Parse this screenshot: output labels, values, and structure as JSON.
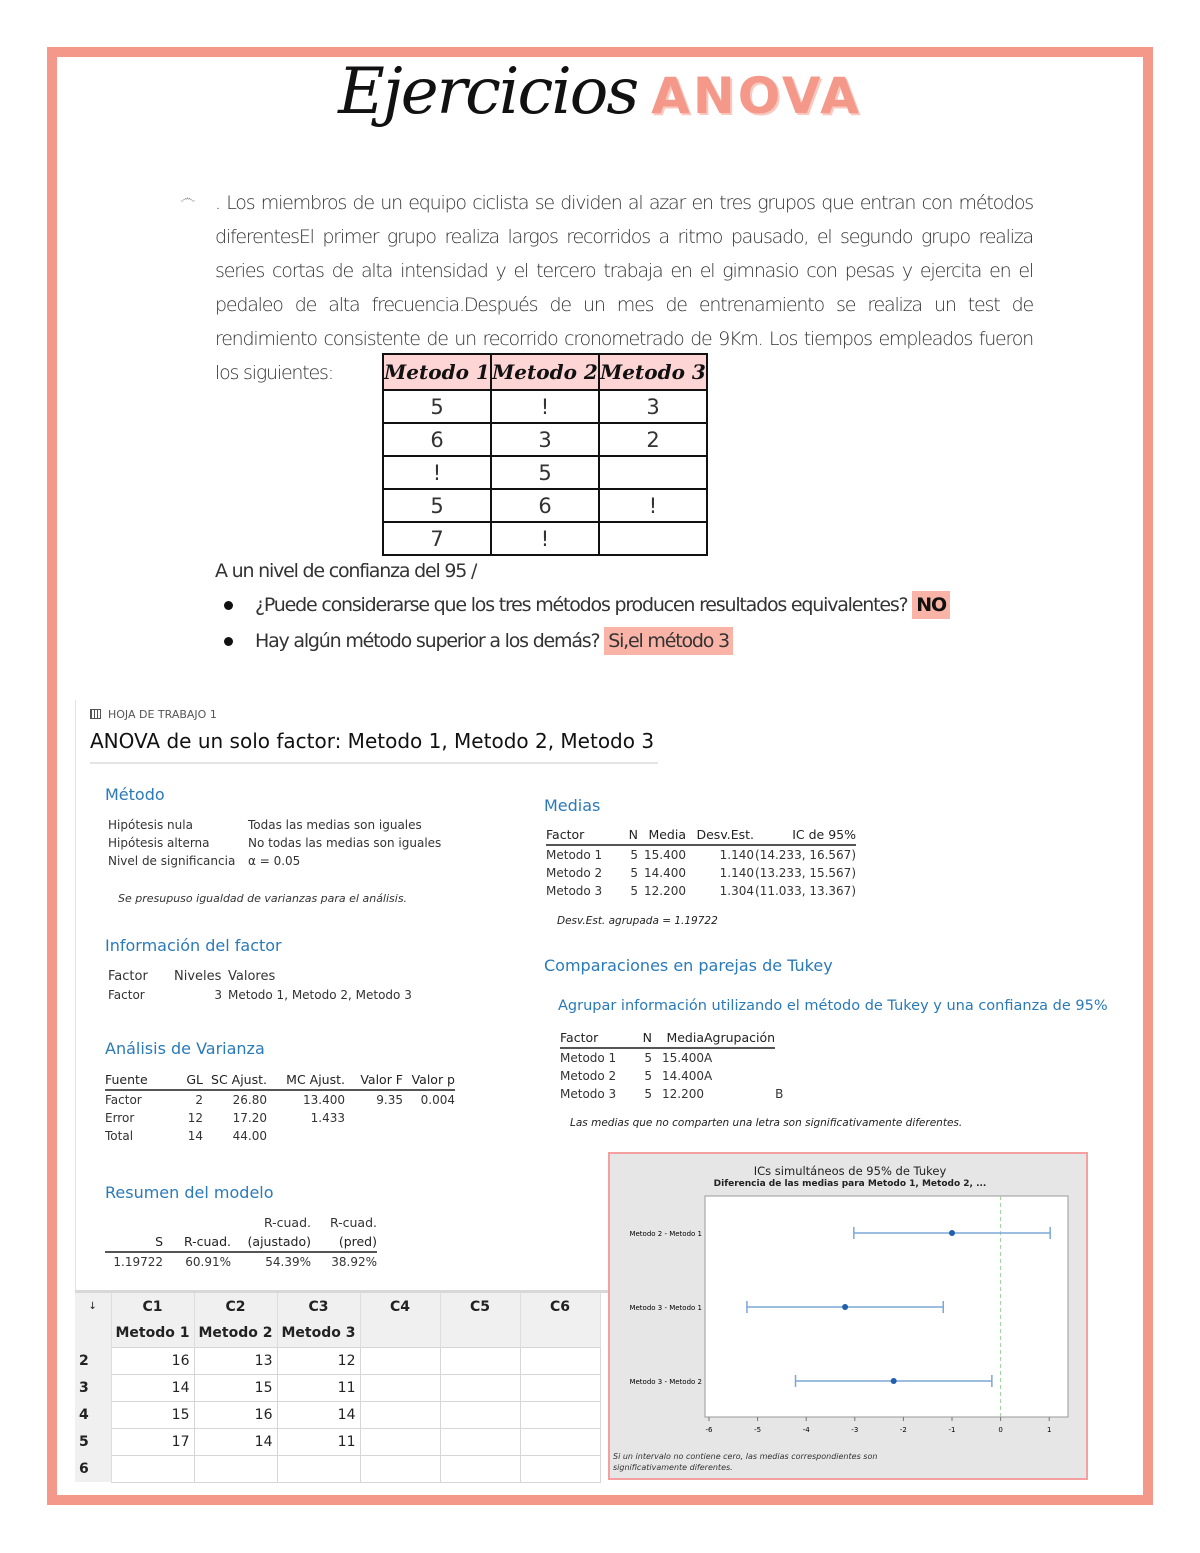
{
  "title": {
    "script": "Ejercicios",
    "accent": "ANOVA"
  },
  "problem": {
    "ornament": "෴",
    "text": ". Los miembros de un equipo ciclista se dividen al azar en tres grupos que entran con métodos diferentesEl primer grupo realiza largos recorridos a ritmo pausado, el segundo grupo realiza series cortas de alta intensidad y el tercero trabaja en el gimnasio con pesas y ejercita en el pedaleo de alta frecuencia.Después de un mes de entrenamiento se realiza un test de rendimiento consistente de un recorrido cronometrado de 9Km. Los tiempos empleados fueron los siguientes:"
  },
  "data_table": {
    "headers": [
      "Metodo 1",
      "Metodo 2",
      "Metodo 3"
    ],
    "rows": [
      [
        "5",
        "!",
        "3"
      ],
      [
        "6",
        "3",
        "2"
      ],
      [
        "!",
        "5",
        ""
      ],
      [
        "5",
        "6",
        "!"
      ],
      [
        "7",
        "!",
        ""
      ]
    ]
  },
  "questions": {
    "intro": "A un nivel de confianza del 95 /",
    "items": [
      {
        "q": "¿Puede considerarse que los tres métodos producen resultados equivalentes?",
        "a": "NO"
      },
      {
        "q": "Hay algún método superior a los demás?",
        "a": "Si,el método 3"
      }
    ]
  },
  "minitab": {
    "worksheet_label": "HOJA DE TRABAJO 1",
    "heading": "ANOVA de un solo factor: Metodo 1, Metodo 2, Metodo 3",
    "metodo": {
      "title": "Método",
      "rows": [
        [
          "Hipótesis nula",
          "Todas las medias son iguales"
        ],
        [
          "Hipótesis alterna",
          "No todas las medias son iguales"
        ],
        [
          "Nivel de significancia",
          "α = 0.05"
        ]
      ],
      "note": "Se presupuso igualdad de varianzas para el análisis."
    },
    "factor_info": {
      "title": "Información del factor",
      "headers": [
        "Factor",
        "Niveles",
        "Valores"
      ],
      "row": [
        "Factor",
        "3",
        "Metodo 1, Metodo 2, Metodo 3"
      ]
    },
    "anova": {
      "title": "Análisis de Varianza",
      "headers": [
        "Fuente",
        "GL",
        "SC Ajust.",
        "MC Ajust.",
        "Valor F",
        "Valor p"
      ],
      "rows": [
        [
          "Factor",
          "2",
          "26.80",
          "13.400",
          "9.35",
          "0.004"
        ],
        [
          "Error",
          "12",
          "17.20",
          "1.433",
          "",
          ""
        ],
        [
          "Total",
          "14",
          "44.00",
          "",
          "",
          ""
        ]
      ]
    },
    "model": {
      "title": "Resumen del modelo",
      "headers_top": [
        "",
        "",
        "R-cuad.",
        "R-cuad."
      ],
      "headers": [
        "S",
        "R-cuad.",
        "(ajustado)",
        "(pred)"
      ],
      "row": [
        "1.19722",
        "60.91%",
        "54.39%",
        "38.92%"
      ]
    },
    "medias": {
      "title": "Medias",
      "headers": [
        "Factor",
        "N",
        "Media",
        "Desv.Est.",
        "IC de 95%"
      ],
      "rows": [
        [
          "Metodo 1",
          "5",
          "15.400",
          "1.140",
          "(14.233, 16.567)"
        ],
        [
          "Metodo 2",
          "5",
          "14.400",
          "1.140",
          "(13.233, 15.567)"
        ],
        [
          "Metodo 3",
          "5",
          "12.200",
          "1.304",
          "(11.033, 13.367)"
        ]
      ],
      "pooled": "Desv.Est. agrupada = 1.19722"
    },
    "tukey": {
      "title": "Comparaciones en parejas de Tukey",
      "subtitle": "Agrupar información utilizando el método de Tukey y una confianza de 95%",
      "headers": [
        "Factor",
        "N",
        "Media",
        "Agrupación"
      ],
      "rows": [
        [
          "Metodo 1",
          "5",
          "15.400",
          "A",
          ""
        ],
        [
          "Metodo 2",
          "5",
          "14.400",
          "A",
          ""
        ],
        [
          "Metodo 3",
          "5",
          "12.200",
          "",
          "B"
        ]
      ],
      "note": "Las medias que no comparten una letra son significativamente diferentes."
    }
  },
  "worksheet": {
    "col_ids": [
      "C1",
      "C2",
      "C3",
      "C4",
      "C5",
      "C6"
    ],
    "col_names": [
      "Metodo 1",
      "Metodo 2",
      "Metodo 3"
    ],
    "rows": [
      {
        "n": "2",
        "v": [
          "16",
          "13",
          "12"
        ]
      },
      {
        "n": "3",
        "v": [
          "14",
          "15",
          "11"
        ]
      },
      {
        "n": "4",
        "v": [
          "15",
          "16",
          "14"
        ]
      },
      {
        "n": "5",
        "v": [
          "17",
          "14",
          "11"
        ]
      },
      {
        "n": "6",
        "v": [
          "",
          "",
          ""
        ]
      }
    ],
    "arrow": "↓"
  },
  "chart_data": {
    "type": "interval",
    "title": "ICs simultáneos de 95% de Tukey",
    "subtitle": "Diferencia de las medias para Metodo 1, Metodo 2, ...",
    "xlim": [
      -6,
      1
    ],
    "xticks": [
      "-6",
      "-5",
      "-4",
      "-3",
      "-2",
      "-1",
      "0",
      "1"
    ],
    "reference_line": 0,
    "series": [
      {
        "label": "Metodo 2 - Metodo 1",
        "diff": -1.0,
        "lower": -3.02,
        "upper": 1.02
      },
      {
        "label": "Metodo 3 - Metodo 1",
        "diff": -3.2,
        "lower": -5.22,
        "upper": -1.18
      },
      {
        "label": "Metodo 3 - Metodo 2",
        "diff": -2.2,
        "lower": -4.22,
        "upper": -0.18
      }
    ],
    "footnote": "Si un intervalo no contiene cero, las medias correspondientes son significativamente diferentes.",
    "colors": {
      "interval": "#7ba7d6",
      "point": "#1f5fae",
      "reference": "#9ad19a"
    }
  }
}
